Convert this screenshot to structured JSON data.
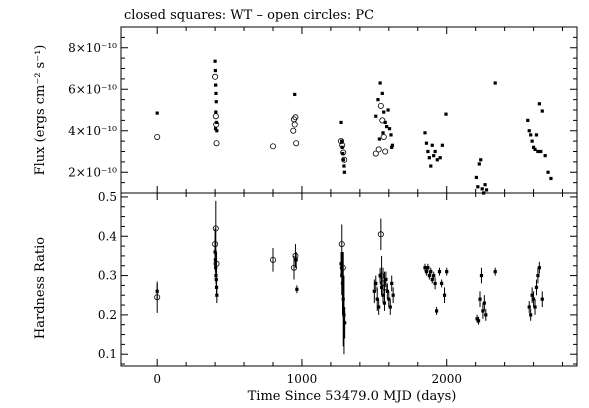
{
  "chart_data": {
    "type": "scatter",
    "title": "closed squares: WT – open circles: PC",
    "xlabel": "Time Since 53479.0 MJD (days)",
    "xlim": [
      -250,
      2900
    ],
    "x_ticks": [
      "0",
      "1000",
      "2000"
    ],
    "x_tick_values": [
      0,
      1000,
      2000
    ],
    "panels": [
      {
        "id": "flux",
        "ylabel": "Flux (ergs cm⁻² s⁻¹)",
        "ylim": [
          1e-10,
          9e-10
        ],
        "y_tick_values": [
          2e-10,
          4e-10,
          6e-10,
          8e-10
        ],
        "y_ticks": [
          "2×10⁻¹⁰",
          "4×10⁻¹⁰",
          "6×10⁻¹⁰",
          "8×10⁻¹⁰"
        ],
        "series": [
          {
            "name": "WT",
            "points": [
              [
                0,
                4.85e-10
              ],
              [
                400,
                7.35e-10
              ],
              [
                402,
                6.9e-10
              ],
              [
                404,
                6.2e-10
              ],
              [
                406,
                5.8e-10
              ],
              [
                408,
                5.4e-10
              ],
              [
                405,
                4.9e-10
              ],
              [
                410,
                4.4e-10
              ],
              [
                403,
                4.1e-10
              ],
              [
                412,
                4e-10
              ],
              [
                950,
                5.75e-10
              ],
              [
                1270,
                4.4e-10
              ],
              [
                1274,
                3.5e-10
              ],
              [
                1278,
                3.2e-10
              ],
              [
                1282,
                2.9e-10
              ],
              [
                1286,
                2.6e-10
              ],
              [
                1290,
                2.3e-10
              ],
              [
                1293,
                2e-10
              ],
              [
                1510,
                4.7e-10
              ],
              [
                1525,
                5.5e-10
              ],
              [
                1540,
                6.3e-10
              ],
              [
                1555,
                5.8e-10
              ],
              [
                1565,
                4.9e-10
              ],
              [
                1575,
                4.4e-10
              ],
              [
                1585,
                4.2e-10
              ],
              [
                1595,
                5e-10
              ],
              [
                1605,
                4.1e-10
              ],
              [
                1615,
                3.8e-10
              ],
              [
                1625,
                3.3e-10
              ],
              [
                1535,
                3.6e-10
              ],
              [
                1560,
                3.9e-10
              ],
              [
                1620,
                3.2e-10
              ],
              [
                1850,
                3.9e-10
              ],
              [
                1860,
                3.4e-10
              ],
              [
                1870,
                3e-10
              ],
              [
                1880,
                2.7e-10
              ],
              [
                1890,
                2.3e-10
              ],
              [
                1900,
                3.3e-10
              ],
              [
                1910,
                2.8e-10
              ],
              [
                1920,
                3e-10
              ],
              [
                1935,
                2.6e-10
              ],
              [
                1955,
                2.7e-10
              ],
              [
                1970,
                3.3e-10
              ],
              [
                1995,
                4.8e-10
              ],
              [
                2205,
                1.75e-10
              ],
              [
                2215,
                1.3e-10
              ],
              [
                2225,
                2.4e-10
              ],
              [
                2235,
                2.6e-10
              ],
              [
                2245,
                1.2e-10
              ],
              [
                2255,
                1e-10
              ],
              [
                2265,
                1.4e-10
              ],
              [
                2275,
                1.15e-10
              ],
              [
                2335,
                6.3e-10
              ],
              [
                2560,
                4.5e-10
              ],
              [
                2570,
                4e-10
              ],
              [
                2580,
                3.8e-10
              ],
              [
                2590,
                3.5e-10
              ],
              [
                2600,
                3.2e-10
              ],
              [
                2610,
                3.1e-10
              ],
              [
                2620,
                3.8e-10
              ],
              [
                2630,
                3e-10
              ],
              [
                2640,
                5.3e-10
              ],
              [
                2650,
                3e-10
              ],
              [
                2660,
                4.95e-10
              ],
              [
                2680,
                2.8e-10
              ],
              [
                2700,
                2e-10
              ],
              [
                2720,
                1.7e-10
              ]
            ]
          },
          {
            "name": "PC",
            "points": [
              [
                0,
                3.7e-10
              ],
              [
                400,
                6.6e-10
              ],
              [
                405,
                4.7e-10
              ],
              [
                408,
                4.3e-10
              ],
              [
                410,
                3.4e-10
              ],
              [
                800,
                3.25e-10
              ],
              [
                940,
                4e-10
              ],
              [
                945,
                4.55e-10
              ],
              [
                950,
                4.3e-10
              ],
              [
                955,
                4.65e-10
              ],
              [
                960,
                3.4e-10
              ],
              [
                1270,
                3.5e-10
              ],
              [
                1278,
                3.3e-10
              ],
              [
                1285,
                2.95e-10
              ],
              [
                1292,
                2.6e-10
              ],
              [
                1510,
                2.9e-10
              ],
              [
                1530,
                3.1e-10
              ],
              [
                1545,
                5.2e-10
              ],
              [
                1555,
                4.5e-10
              ],
              [
                1565,
                3.7e-10
              ],
              [
                1575,
                3e-10
              ]
            ]
          }
        ]
      },
      {
        "id": "hardness",
        "ylabel": "Hardness Ratio",
        "ylim": [
          0.07,
          0.51
        ],
        "y_tick_values": [
          0.1,
          0.2,
          0.3,
          0.4,
          0.5
        ],
        "y_ticks": [
          "0.1",
          "0.2",
          "0.3",
          "0.4",
          "0.5"
        ],
        "series": [
          {
            "name": "WT",
            "points": [
              [
                0,
                0.26,
                0.02
              ],
              [
                400,
                0.36,
                0.04
              ],
              [
                402,
                0.34,
                0.03
              ],
              [
                404,
                0.32,
                0.02
              ],
              [
                406,
                0.3,
                0.02
              ],
              [
                408,
                0.29,
                0.02
              ],
              [
                410,
                0.27,
                0.02
              ],
              [
                412,
                0.25,
                0.02
              ],
              [
                960,
                0.34,
                0.02
              ],
              [
                965,
                0.265,
                0.01
              ],
              [
                1270,
                0.33,
                0.03
              ],
              [
                1275,
                0.3,
                0.05
              ],
              [
                1280,
                0.28,
                0.08
              ],
              [
                1285,
                0.24,
                0.12
              ],
              [
                1290,
                0.2,
                0.1
              ],
              [
                1295,
                0.18,
                0.04
              ],
              [
                1500,
                0.26,
                0.03
              ],
              [
                1510,
                0.28,
                0.02
              ],
              [
                1520,
                0.24,
                0.03
              ],
              [
                1530,
                0.22,
                0.02
              ],
              [
                1540,
                0.3,
                0.02
              ],
              [
                1550,
                0.27,
                0.02
              ],
              [
                1560,
                0.25,
                0.02
              ],
              [
                1570,
                0.23,
                0.02
              ],
              [
                1580,
                0.29,
                0.02
              ],
              [
                1590,
                0.26,
                0.02
              ],
              [
                1600,
                0.24,
                0.02
              ],
              [
                1610,
                0.22,
                0.02
              ],
              [
                1620,
                0.28,
                0.02
              ],
              [
                1630,
                0.25,
                0.02
              ],
              [
                1850,
                0.32,
                0.01
              ],
              [
                1860,
                0.31,
                0.01
              ],
              [
                1870,
                0.32,
                0.01
              ],
              [
                1880,
                0.3,
                0.01
              ],
              [
                1890,
                0.31,
                0.01
              ],
              [
                1900,
                0.29,
                0.01
              ],
              [
                1910,
                0.3,
                0.01
              ],
              [
                1920,
                0.28,
                0.015
              ],
              [
                1930,
                0.21,
                0.01
              ],
              [
                1950,
                0.31,
                0.01
              ],
              [
                1965,
                0.28,
                0.01
              ],
              [
                1985,
                0.25,
                0.02
              ],
              [
                2000,
                0.31,
                0.01
              ],
              [
                2210,
                0.19,
                0.01
              ],
              [
                2220,
                0.185,
                0.01
              ],
              [
                2230,
                0.24,
                0.02
              ],
              [
                2240,
                0.3,
                0.02
              ],
              [
                2250,
                0.21,
                0.02
              ],
              [
                2260,
                0.23,
                0.02
              ],
              [
                2270,
                0.2,
                0.015
              ],
              [
                2335,
                0.31,
                0.01
              ],
              [
                2570,
                0.22,
                0.015
              ],
              [
                2580,
                0.2,
                0.015
              ],
              [
                2590,
                0.25,
                0.02
              ],
              [
                2600,
                0.24,
                0.02
              ],
              [
                2610,
                0.22,
                0.02
              ],
              [
                2620,
                0.27,
                0.02
              ],
              [
                2630,
                0.3,
                0.02
              ],
              [
                2640,
                0.32,
                0.015
              ],
              [
                2660,
                0.24,
                0.02
              ]
            ]
          },
          {
            "name": "PC",
            "points": [
              [
                0,
                0.245,
                0.04
              ],
              [
                400,
                0.38,
                0.04
              ],
              [
                405,
                0.42,
                0.07
              ],
              [
                410,
                0.33,
                0.03
              ],
              [
                800,
                0.34,
                0.03
              ],
              [
                945,
                0.32,
                0.03
              ],
              [
                955,
                0.35,
                0.03
              ],
              [
                1275,
                0.38,
                0.05
              ],
              [
                1282,
                0.32,
                0.04
              ],
              [
                1545,
                0.405,
                0.04
              ],
              [
                1550,
                0.3,
                0.05
              ],
              [
                1560,
                0.28,
                0.04
              ],
              [
                1570,
                0.27,
                0.04
              ]
            ]
          }
        ]
      }
    ]
  }
}
